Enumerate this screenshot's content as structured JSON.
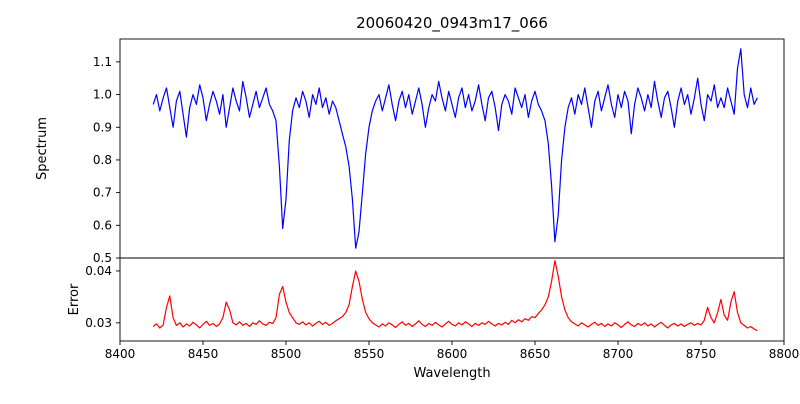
{
  "chart_data": {
    "type": "line",
    "title": "20060420_0943m17_066",
    "xlabel": "Wavelength",
    "xlim": [
      8400,
      8800
    ],
    "x_ticks": [
      8400,
      8450,
      8500,
      8550,
      8600,
      8650,
      8700,
      8750,
      8800
    ],
    "x_tick_labels": [
      "8400",
      "8450",
      "8500",
      "8550",
      "8600",
      "8650",
      "8700",
      "8750",
      "8800"
    ],
    "x_start": 8420,
    "x_step": 2,
    "grid": false,
    "legend": "none",
    "annotations": "absorption lines (Ca II triplet) near 8498, 8542, 8662 with matching error peaks",
    "panels": [
      {
        "name": "spectrum",
        "ylabel": "Spectrum",
        "color": "#0000ff",
        "ylim": [
          0.5,
          1.17
        ],
        "y_ticks": [
          0.5,
          0.6,
          0.7,
          0.8,
          0.9,
          1.0,
          1.1
        ],
        "y_tick_labels": [
          "0.5",
          "0.6",
          "0.7",
          "0.8",
          "0.9",
          "1.0",
          "1.1"
        ],
        "values": [
          0.97,
          1.0,
          0.95,
          0.99,
          1.02,
          0.96,
          0.9,
          0.98,
          1.01,
          0.94,
          0.87,
          0.96,
          1.0,
          0.97,
          1.03,
          0.99,
          0.92,
          0.97,
          1.01,
          0.98,
          0.94,
          1.0,
          0.9,
          0.96,
          1.02,
          0.98,
          0.95,
          1.04,
          0.99,
          0.93,
          0.97,
          1.01,
          0.96,
          0.99,
          1.02,
          0.97,
          0.95,
          0.92,
          0.78,
          0.59,
          0.68,
          0.86,
          0.95,
          0.99,
          0.96,
          1.01,
          0.98,
          0.93,
          1.0,
          0.97,
          1.02,
          0.96,
          0.99,
          0.94,
          0.98,
          0.96,
          0.92,
          0.88,
          0.84,
          0.78,
          0.68,
          0.53,
          0.58,
          0.7,
          0.82,
          0.9,
          0.95,
          0.98,
          1.0,
          0.95,
          0.99,
          1.03,
          0.97,
          0.92,
          0.98,
          1.01,
          0.96,
          1.0,
          0.94,
          0.98,
          1.02,
          0.97,
          0.9,
          0.96,
          1.0,
          0.98,
          1.04,
          0.99,
          0.95,
          1.01,
          0.97,
          0.93,
          0.99,
          1.02,
          0.96,
          1.0,
          0.95,
          0.98,
          1.03,
          0.97,
          0.92,
          0.99,
          1.01,
          0.96,
          0.89,
          0.97,
          1.0,
          0.98,
          0.94,
          1.02,
          0.99,
          0.96,
          1.0,
          0.93,
          0.98,
          1.01,
          0.97,
          0.95,
          0.92,
          0.85,
          0.72,
          0.55,
          0.63,
          0.8,
          0.9,
          0.96,
          0.99,
          0.94,
          1.0,
          0.97,
          1.02,
          0.96,
          0.9,
          0.98,
          1.01,
          0.95,
          0.99,
          1.03,
          0.97,
          0.93,
          1.0,
          0.96,
          1.01,
          0.98,
          0.88,
          0.97,
          1.02,
          0.99,
          0.95,
          1.0,
          0.96,
          1.04,
          0.98,
          0.93,
          0.99,
          1.01,
          0.96,
          0.9,
          0.98,
          1.02,
          0.97,
          1.0,
          0.94,
          0.99,
          1.05,
          0.97,
          0.92,
          1.0,
          0.98,
          1.03,
          0.96,
          0.99,
          0.96,
          1.02,
          0.98,
          0.94,
          1.08,
          1.14,
          1.0,
          0.96,
          1.02,
          0.97,
          0.99
        ]
      },
      {
        "name": "error",
        "ylabel": "Error",
        "color": "#ff0000",
        "ylim": [
          0.0265,
          0.0425
        ],
        "y_ticks": [
          0.03,
          0.04
        ],
        "y_tick_labels": [
          "0.03",
          "0.04"
        ],
        "values": [
          0.0293,
          0.0298,
          0.029,
          0.0296,
          0.033,
          0.0352,
          0.031,
          0.0295,
          0.03,
          0.0292,
          0.0298,
          0.0294,
          0.0301,
          0.0296,
          0.029,
          0.0297,
          0.0303,
          0.0295,
          0.0299,
          0.0293,
          0.0298,
          0.031,
          0.034,
          0.0325,
          0.03,
          0.0296,
          0.0302,
          0.0295,
          0.0299,
          0.0293,
          0.03,
          0.0297,
          0.0304,
          0.0298,
          0.0295,
          0.0301,
          0.0299,
          0.031,
          0.0355,
          0.037,
          0.034,
          0.032,
          0.031,
          0.03,
          0.0297,
          0.0302,
          0.0296,
          0.03,
          0.0294,
          0.0299,
          0.0303,
          0.0297,
          0.0301,
          0.0295,
          0.0299,
          0.0304,
          0.0308,
          0.0312,
          0.032,
          0.0335,
          0.037,
          0.04,
          0.038,
          0.0345,
          0.032,
          0.0308,
          0.03,
          0.0296,
          0.0292,
          0.0298,
          0.0294,
          0.03,
          0.0296,
          0.0291,
          0.0297,
          0.0302,
          0.0295,
          0.0299,
          0.0293,
          0.0298,
          0.0304,
          0.0297,
          0.0293,
          0.0299,
          0.0295,
          0.0301,
          0.0296,
          0.0292,
          0.0298,
          0.0303,
          0.0297,
          0.0294,
          0.03,
          0.0296,
          0.0302,
          0.0298,
          0.0293,
          0.0299,
          0.0295,
          0.03,
          0.0297,
          0.0303,
          0.0298,
          0.0294,
          0.0299,
          0.0296,
          0.0301,
          0.0297,
          0.0305,
          0.03,
          0.0306,
          0.0302,
          0.0308,
          0.0305,
          0.0312,
          0.031,
          0.0318,
          0.0325,
          0.0335,
          0.035,
          0.038,
          0.042,
          0.039,
          0.035,
          0.0325,
          0.031,
          0.0302,
          0.0298,
          0.0294,
          0.03,
          0.0296,
          0.0292,
          0.0297,
          0.0301,
          0.0295,
          0.0299,
          0.0293,
          0.0298,
          0.0294,
          0.03,
          0.0296,
          0.0291,
          0.0297,
          0.0302,
          0.0296,
          0.0293,
          0.0299,
          0.0295,
          0.03,
          0.0294,
          0.0298,
          0.0292,
          0.0297,
          0.0301,
          0.0295,
          0.029,
          0.0296,
          0.0299,
          0.0294,
          0.0298,
          0.0293,
          0.0297,
          0.03,
          0.0295,
          0.0299,
          0.0296,
          0.0305,
          0.033,
          0.031,
          0.03,
          0.032,
          0.0345,
          0.0315,
          0.0305,
          0.034,
          0.036,
          0.032,
          0.03,
          0.0295,
          0.029,
          0.0293,
          0.0288,
          0.0285
        ]
      }
    ]
  }
}
